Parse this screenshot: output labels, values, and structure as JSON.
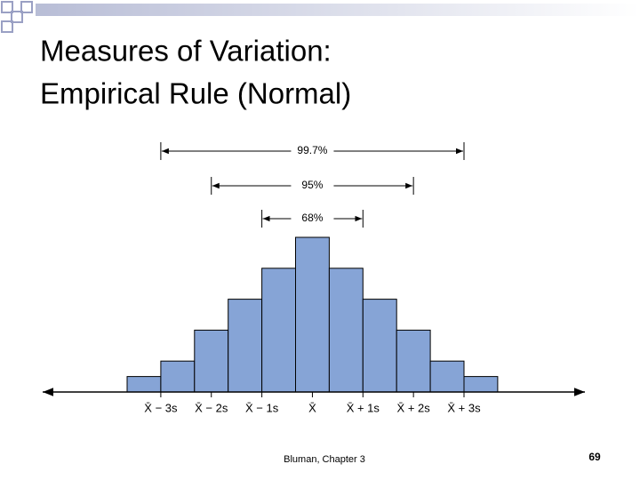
{
  "title": [
    "Measures of Variation:",
    "Empirical Rule (Normal)"
  ],
  "figure": {
    "ranges": [
      "99.7%",
      "95%",
      "68%"
    ],
    "x_labels": [
      "X̄ − 3s",
      "X̄ − 2s",
      "X̄ − 1s",
      "X̄",
      "X̄ + 1s",
      "X̄ + 2s",
      "X̄ + 3s"
    ],
    "bar_heights": [
      1,
      2,
      4,
      6,
      8,
      10,
      8,
      6,
      4,
      2,
      1
    ]
  },
  "footer": "Bluman, Chapter 3",
  "page_number": 69
}
